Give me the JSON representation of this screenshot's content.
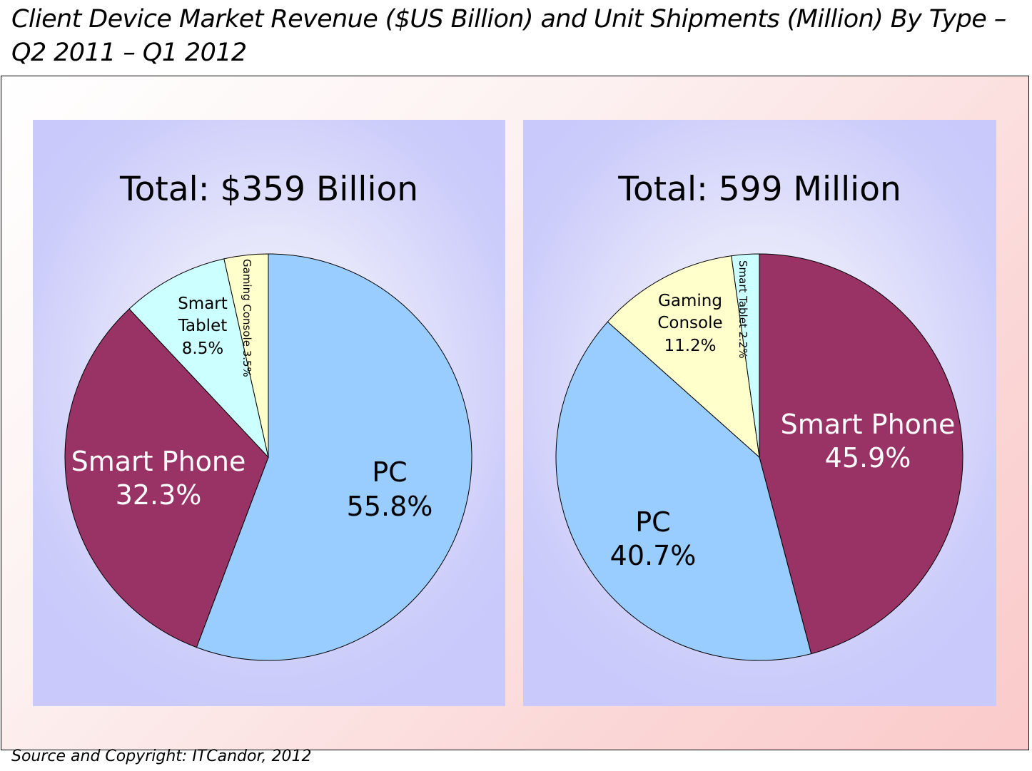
{
  "title": "Client Device Market Revenue ($US Billion) and Unit Shipments (Million) By Type – Q2 2011 – Q1 2012",
  "source": "Source and Copyright: ITCandor, 2012",
  "chart_data": [
    {
      "type": "pie",
      "title": "Total: $359 Billion",
      "categories": [
        "PC",
        "Smart Phone",
        "Smart Tablet",
        "Gaming Console"
      ],
      "values": [
        55.8,
        32.3,
        8.5,
        3.5
      ],
      "labels": [
        {
          "name": "PC",
          "value": "55.8%"
        },
        {
          "name": "Smart Phone",
          "value": "32.3%"
        },
        {
          "name": "Smart Tablet",
          "value": "8.5%"
        },
        {
          "name": "Gaming Console",
          "value": "3.5%"
        }
      ],
      "colors": [
        "#99ccff",
        "#993366",
        "#ccffff",
        "#ffffcc"
      ]
    },
    {
      "type": "pie",
      "title": "Total: 599 Million",
      "categories": [
        "Smart Phone",
        "PC",
        "Gaming Console",
        "Smart Tablet"
      ],
      "values": [
        45.9,
        40.7,
        11.2,
        2.2
      ],
      "labels": [
        {
          "name": "Smart Phone",
          "value": "45.9%"
        },
        {
          "name": "PC",
          "value": "40.7%"
        },
        {
          "name": "Gaming Console",
          "value": "11.2%"
        },
        {
          "name": "Smart Tablet",
          "value": "2.2%"
        }
      ],
      "colors": [
        "#993366",
        "#99ccff",
        "#ffffcc",
        "#ccffff"
      ]
    }
  ]
}
